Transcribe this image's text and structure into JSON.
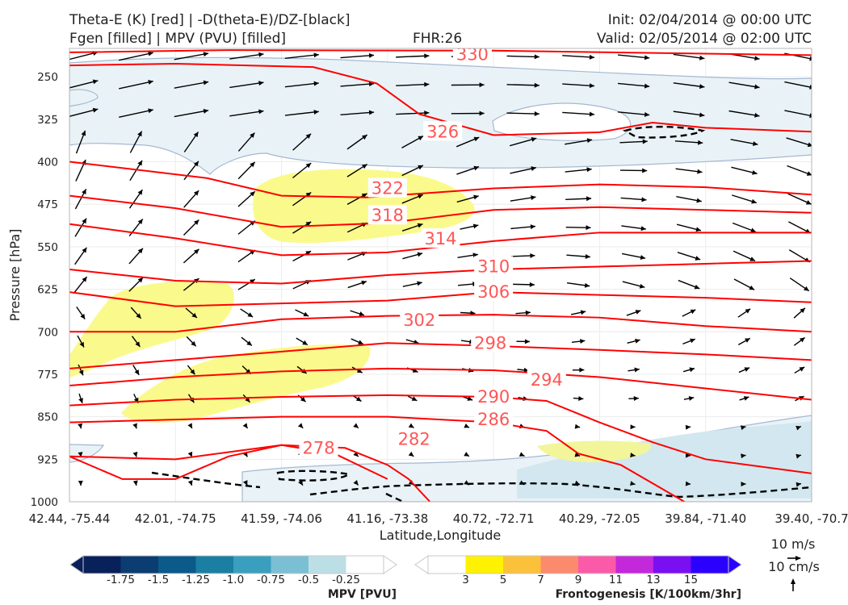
{
  "header": {
    "line1_left": "Theta-E (K) [red] | -D(theta-E)/DZ-[black]",
    "line2_left": "Fgen [filled] | MPV (PVU) [filled]",
    "fhr": "FHR:26",
    "init": "Init: 02/04/2014 @ 00:00 UTC",
    "valid": "Valid: 02/05/2014 @ 02:00 UTC"
  },
  "chart_data": {
    "type": "cross-section",
    "xlabel": "Latitude,Longitude",
    "ylabel": "Pressure [hPa]",
    "x_ticks": [
      "42.44, -75.44",
      "42.01, -74.75",
      "41.59, -74.06",
      "41.16, -73.38",
      "40.72, -72.71",
      "40.29, -72.05",
      "39.84, -71.40",
      "39.40, -70.7"
    ],
    "y_ticks": [
      250,
      325,
      400,
      475,
      550,
      625,
      700,
      775,
      850,
      925,
      1000
    ],
    "ylim": [
      1000,
      200
    ],
    "theta_e_contours": [
      {
        "level": "330",
        "pts": [
          [
            0,
            207
          ],
          [
            1.5,
            203
          ],
          [
            4,
            204
          ],
          [
            7,
            212
          ]
        ],
        "lab": [
          3.8,
          211
        ]
      },
      {
        "level": "326",
        "pts": [
          [
            0,
            230
          ],
          [
            1,
            227
          ],
          [
            2.3,
            233
          ],
          [
            2.9,
            262
          ],
          [
            3.3,
            316
          ],
          [
            4,
            353
          ],
          [
            5,
            348
          ],
          [
            5.5,
            331
          ],
          [
            6,
            340
          ],
          [
            7,
            347
          ]
        ],
        "lab": [
          3.52,
          347
        ]
      },
      {
        "level": "322",
        "pts": [
          [
            0,
            400
          ],
          [
            1.3,
            429
          ],
          [
            2,
            460
          ],
          [
            2.8,
            463
          ],
          [
            4,
            447
          ],
          [
            5,
            440
          ],
          [
            6,
            445
          ],
          [
            7,
            458
          ]
        ],
        "lab": [
          3,
          447
        ]
      },
      {
        "level": "318",
        "pts": [
          [
            0,
            460
          ],
          [
            1,
            482
          ],
          [
            2,
            515
          ],
          [
            3,
            508
          ],
          [
            4,
            485
          ],
          [
            5,
            480
          ],
          [
            6,
            485
          ],
          [
            7,
            490
          ]
        ],
        "lab": [
          3,
          495
        ]
      },
      {
        "level": "314",
        "pts": [
          [
            0,
            510
          ],
          [
            1,
            535
          ],
          [
            2,
            565
          ],
          [
            3,
            560
          ],
          [
            4,
            540
          ],
          [
            5,
            525
          ],
          [
            6,
            525
          ],
          [
            7,
            525
          ]
        ],
        "lab": [
          3.5,
          536
        ]
      },
      {
        "level": "310",
        "pts": [
          [
            0,
            590
          ],
          [
            1,
            610
          ],
          [
            2,
            615
          ],
          [
            3,
            600
          ],
          [
            4,
            590
          ],
          [
            5,
            585
          ],
          [
            6,
            580
          ],
          [
            7,
            575
          ]
        ],
        "lab": [
          4,
          585
        ]
      },
      {
        "level": "306",
        "pts": [
          [
            0,
            630
          ],
          [
            1,
            655
          ],
          [
            2,
            650
          ],
          [
            3,
            645
          ],
          [
            4,
            630
          ],
          [
            5,
            635
          ],
          [
            6,
            640
          ],
          [
            7,
            648
          ]
        ],
        "lab": [
          4,
          630
        ]
      },
      {
        "level": "302",
        "pts": [
          [
            0,
            700
          ],
          [
            1,
            700
          ],
          [
            2,
            678
          ],
          [
            3,
            672
          ],
          [
            4,
            670
          ],
          [
            5,
            675
          ],
          [
            6,
            690
          ],
          [
            7,
            700
          ]
        ],
        "lab": [
          3.3,
          680
        ]
      },
      {
        "level": "298",
        "pts": [
          [
            0,
            765
          ],
          [
            1,
            750
          ],
          [
            2,
            735
          ],
          [
            3,
            720
          ],
          [
            4,
            725
          ],
          [
            5,
            732
          ],
          [
            6,
            740
          ],
          [
            7,
            750
          ]
        ],
        "lab": [
          3.97,
          720
        ]
      },
      {
        "level": "294",
        "pts": [
          [
            0,
            795
          ],
          [
            1,
            780
          ],
          [
            2,
            770
          ],
          [
            3,
            765
          ],
          [
            4,
            768
          ],
          [
            5,
            780
          ],
          [
            6,
            800
          ],
          [
            7,
            820
          ]
        ],
        "lab": [
          4.5,
          785
        ]
      },
      {
        "level": "290",
        "pts": [
          [
            0,
            830
          ],
          [
            1,
            820
          ],
          [
            2,
            815
          ],
          [
            3,
            812
          ],
          [
            4,
            815
          ],
          [
            4.5,
            822
          ],
          [
            5,
            860
          ],
          [
            5.5,
            895
          ],
          [
            6,
            925
          ],
          [
            7,
            950
          ]
        ],
        "lab": [
          4,
          815
        ]
      },
      {
        "level": "286",
        "pts": [
          [
            0,
            860
          ],
          [
            1,
            855
          ],
          [
            2,
            850
          ],
          [
            3,
            850
          ],
          [
            4,
            860
          ],
          [
            4.5,
            875
          ],
          [
            4.8,
            915
          ],
          [
            5.2,
            935
          ],
          [
            5.8,
            1000
          ]
        ],
        "lab": [
          4,
          855
        ]
      },
      {
        "level": "282",
        "pts": [
          [
            0,
            920
          ],
          [
            1,
            925
          ],
          [
            2,
            900
          ],
          [
            2.6,
            905
          ],
          [
            3,
            935
          ],
          [
            3.2,
            960
          ],
          [
            3.4,
            1000
          ]
        ],
        "lab": [
          3.25,
          890
        ]
      },
      {
        "level": "278",
        "pts": [
          [
            0,
            920
          ],
          [
            0.5,
            960
          ],
          [
            1,
            960
          ],
          [
            1.5,
            920
          ],
          [
            2,
            900
          ],
          [
            2.5,
            915
          ],
          [
            3,
            960
          ]
        ],
        "lab": [
          2.35,
          905
        ]
      }
    ],
    "mpv_legend": {
      "label": "MPV [PVU]",
      "ticks": [
        "-1.75",
        "-1.5",
        "-1.25",
        "-1.0",
        "-0.75",
        "-0.5",
        "-0.25"
      ],
      "colors": [
        "#08215a",
        "#0b3d72",
        "#0a5a8a",
        "#1a7fa2",
        "#3a9fbe",
        "#7bbfd4",
        "#bcdfe6",
        "#ffffff"
      ]
    },
    "fgen_legend": {
      "label": "Frontogenesis [K/100km/3hr]",
      "ticks": [
        "3",
        "5",
        "7",
        "9",
        "11",
        "13",
        "15"
      ],
      "colors": [
        "#ffffff",
        "#fff200",
        "#fcc13a",
        "#fc8a6d",
        "#fb5aa8",
        "#c328db",
        "#7a0ff2",
        "#2b00ff"
      ]
    },
    "wind_keys": [
      "10 m/s",
      "10 cm/s"
    ],
    "colors": {
      "theta_e": "#ff0000",
      "label": "#ff5555",
      "stability": "#000000",
      "mpv_fill": "#e9f3f7",
      "mpv_line": "#a5b8d2",
      "fgen_fill": "#fafa8c"
    }
  }
}
